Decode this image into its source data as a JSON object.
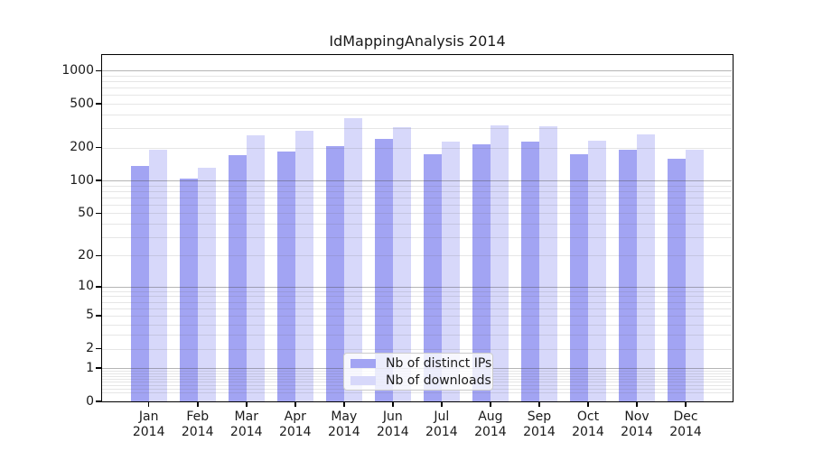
{
  "chart_data": {
    "type": "bar",
    "title": "IdMappingAnalysis 2014",
    "categories": [
      "Jan",
      "Feb",
      "Mar",
      "Apr",
      "May",
      "Jun",
      "Jul",
      "Aug",
      "Sep",
      "Oct",
      "Nov",
      "Dec"
    ],
    "category_year": "2014",
    "series": [
      {
        "name": "Nb of distinct IPs",
        "color": "#a2a4f3",
        "values": [
          135,
          104,
          170,
          185,
          207,
          238,
          173,
          214,
          226,
          175,
          192,
          158
        ]
      },
      {
        "name": "Nb of downloads",
        "color": "#d7d8fa",
        "values": [
          190,
          130,
          260,
          286,
          368,
          306,
          226,
          316,
          310,
          232,
          262,
          192
        ]
      }
    ],
    "yscale": "log10(value+1)",
    "ylim": [
      0,
      1400
    ],
    "y_tick_labels": [
      0,
      1,
      2,
      5,
      10,
      20,
      50,
      100,
      200,
      500,
      1000
    ],
    "major_grid_values": [
      1,
      10,
      100,
      1000
    ],
    "grid": true,
    "legend_position": "lower center"
  },
  "colors": {
    "distinct_ips_bar": "#a2a4f3",
    "downloads_bar": "#d7d8fa",
    "major_gridline": "rgba(70,70,70,0.40)",
    "minor_gridline": "rgba(100,100,100,0.16)",
    "spine": "#000000",
    "legend_border": "#cccccc",
    "text": "#1a1a1a"
  }
}
